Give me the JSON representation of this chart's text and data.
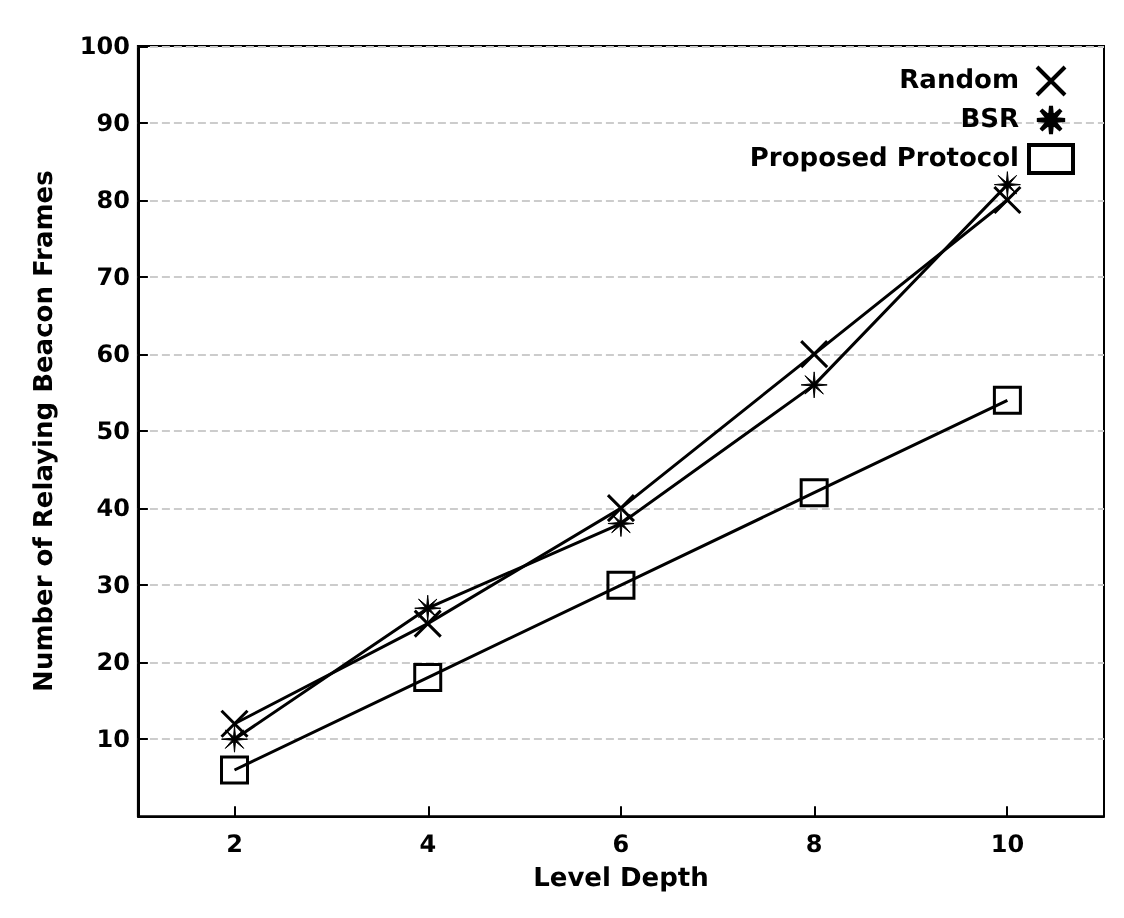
{
  "chart_data": {
    "type": "line",
    "xlabel": "Level Depth",
    "ylabel": "Number of Relaying Beacon Frames",
    "x": [
      2,
      4,
      6,
      8,
      10
    ],
    "series": [
      {
        "name": "Random",
        "color": "#000000",
        "marker": "cross",
        "values": [
          12,
          25,
          40,
          60,
          80
        ]
      },
      {
        "name": "BSR",
        "color": "#000000",
        "marker": "star",
        "values": [
          10,
          27,
          38,
          56,
          82
        ]
      },
      {
        "name": "Proposed Protocol",
        "color": "#000000",
        "marker": "square",
        "values": [
          6,
          18,
          30,
          42,
          54
        ]
      }
    ],
    "xlim": [
      1,
      11
    ],
    "xticks": [
      2,
      4,
      6,
      8,
      10
    ],
    "ylim": [
      0,
      100
    ],
    "yticks": [
      10,
      20,
      30,
      40,
      50,
      60,
      70,
      80,
      90,
      100
    ],
    "grid": "y",
    "legend": "top right",
    "line_style": "solid"
  }
}
